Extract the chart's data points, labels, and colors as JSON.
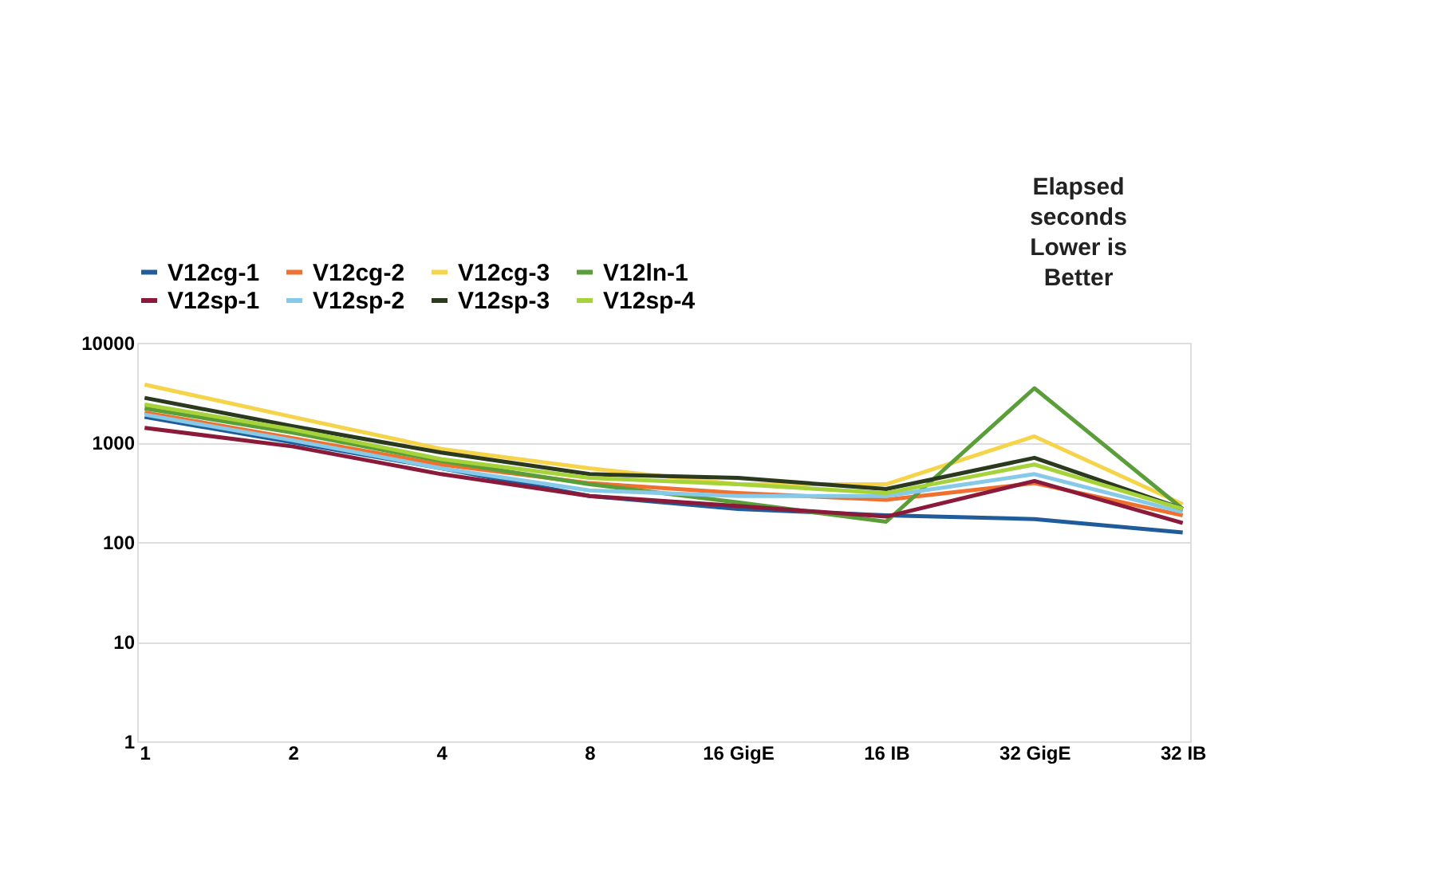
{
  "chart_data": {
    "type": "line",
    "categories": [
      "1",
      "2",
      "4",
      "8",
      "16 GigE",
      "16 IB",
      "32 GigE",
      "32 IB"
    ],
    "series": [
      {
        "name": "V12cg-1",
        "color": "#1f5c99",
        "values": [
          1800,
          1000,
          550,
          290,
          215,
          185,
          170,
          125
        ]
      },
      {
        "name": "V12cg-2",
        "color": "#f07030",
        "values": [
          2000,
          1100,
          600,
          390,
          310,
          265,
          390,
          185
        ]
      },
      {
        "name": "V12cg-3",
        "color": "#f5d44a",
        "values": [
          3800,
          1800,
          860,
          550,
          380,
          380,
          1150,
          240
        ]
      },
      {
        "name": "V12ln-1",
        "color": "#5a9e3a",
        "values": [
          2200,
          1250,
          650,
          380,
          250,
          160,
          3500,
          215
        ]
      },
      {
        "name": "V12sp-1",
        "color": "#8b1a3a",
        "values": [
          1400,
          910,
          480,
          290,
          230,
          180,
          410,
          155
        ]
      },
      {
        "name": "V12sp-2",
        "color": "#87c9e8",
        "values": [
          1900,
          1050,
          550,
          330,
          290,
          290,
          480,
          200
        ]
      },
      {
        "name": "V12sp-3",
        "color": "#2b3a1e",
        "values": [
          2800,
          1450,
          790,
          480,
          440,
          340,
          700,
          215
        ]
      },
      {
        "name": "V12sp-4",
        "color": "#a6d23a",
        "values": [
          2400,
          1350,
          680,
          440,
          380,
          310,
          600,
          215
        ]
      }
    ],
    "log": true,
    "ylim": [
      1,
      10000
    ],
    "yticks": [
      1,
      10,
      100,
      1000,
      10000
    ],
    "grid": "y",
    "legend": "top",
    "annotations": [
      "Elapsed\nseconds\nLower is\nBetter"
    ]
  }
}
